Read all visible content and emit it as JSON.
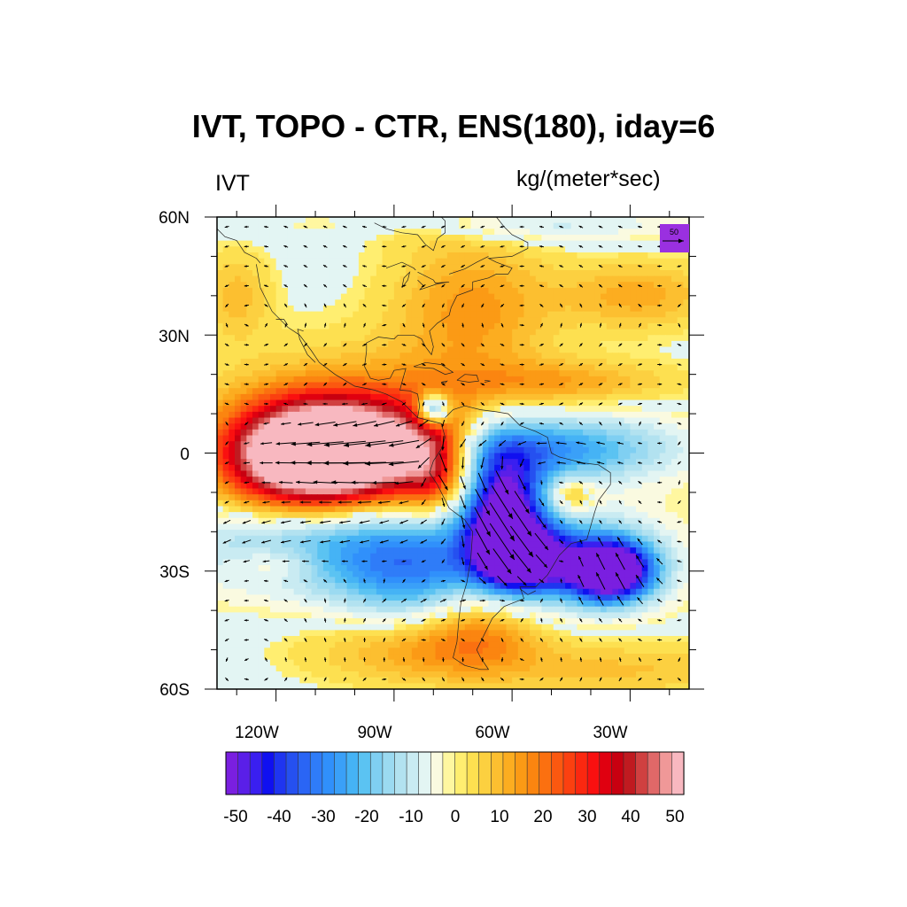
{
  "title": "IVT, TOPO - CTR, ENS(180), iday=6",
  "left_string": "IVT",
  "right_string": "kg/(meter*sec)",
  "y_axis_labels": [
    "60N",
    "30N",
    "0",
    "30S",
    "60S"
  ],
  "x_axis_labels": [
    "120W",
    "90W",
    "60W",
    "30W"
  ],
  "reference_vector_label": "50",
  "colorbar_labels": [
    "-50",
    "-40",
    "-30",
    "-20",
    "-10",
    "0",
    "10",
    "20",
    "30",
    "40",
    "50"
  ],
  "colorbar_colors": [
    "#7a1fe0",
    "#5a1fe8",
    "#3a1ff0",
    "#1010f0",
    "#1f35f0",
    "#2550f0",
    "#2a65f5",
    "#2f7cf8",
    "#3090fb",
    "#3aa0f8",
    "#45b3f5",
    "#5bc3f2",
    "#7fcff2",
    "#9bdaf1",
    "#b2e2f0",
    "#c9ebf2",
    "#e3f5f3",
    "#fafae0",
    "#fff7a0",
    "#ffee70",
    "#fde050",
    "#fcd040",
    "#fcbf30",
    "#fcad20",
    "#fb9a15",
    "#fb8510",
    "#fb7010",
    "#fb5810",
    "#fb4010",
    "#fb2810",
    "#fa1010",
    "#e00010",
    "#c80010",
    "#c01a20",
    "#d04040",
    "#e06868",
    "#f09898",
    "#f8b8c0"
  ],
  "colors": {
    "background": "#ffffff",
    "coastline": "#222222",
    "vector": "#000000",
    "ref_box": "#9a30e0"
  },
  "map": {
    "lat_range": [
      -60,
      60
    ],
    "lon_range": [
      -135,
      -15
    ],
    "data_range": [
      -50,
      50
    ]
  },
  "field_features": [
    {
      "lon": -105,
      "lat": 0,
      "value": 75,
      "sx": 16,
      "sy": 9
    },
    {
      "lon": -98,
      "lat": 5,
      "value": 15,
      "sx": 25,
      "sy": 14
    },
    {
      "lon": -80,
      "lat": -2,
      "value": 25,
      "sx": 6,
      "sy": 9
    },
    {
      "lon": -120,
      "lat": -3,
      "value": 15,
      "sx": 12,
      "sy": 10
    },
    {
      "lon": -80,
      "lat": 11,
      "value": -40,
      "sx": 3,
      "sy": 3
    },
    {
      "lon": -52,
      "lat": 1,
      "value": -28,
      "sx": 22,
      "sy": 6
    },
    {
      "lon": -62,
      "lat": -15,
      "value": -52,
      "sx": 7,
      "sy": 11
    },
    {
      "lon": -57,
      "lat": -27,
      "value": -40,
      "sx": 7,
      "sy": 5
    },
    {
      "lon": -35,
      "lat": -30,
      "value": -58,
      "sx": 7,
      "sy": 5
    },
    {
      "lon": -45,
      "lat": -28,
      "value": -25,
      "sx": 16,
      "sy": 8
    },
    {
      "lon": -100,
      "lat": -22,
      "value": -25,
      "sx": 30,
      "sy": 9
    },
    {
      "lon": -85,
      "lat": -33,
      "value": -18,
      "sx": 14,
      "sy": 8
    },
    {
      "lon": -45,
      "lat": -11,
      "value": 15,
      "sx": 4,
      "sy": 3
    },
    {
      "lon": -70,
      "lat": 37,
      "value": 14,
      "sx": 14,
      "sy": 13
    },
    {
      "lon": -48,
      "lat": 18,
      "value": 12,
      "sx": 20,
      "sy": 4
    },
    {
      "lon": -28,
      "lat": 40,
      "value": 12,
      "sx": 14,
      "sy": 6
    },
    {
      "lon": -82,
      "lat": -50,
      "value": 13,
      "sx": 20,
      "sy": 6
    },
    {
      "lon": -68,
      "lat": -42,
      "value": 14,
      "sx": 10,
      "sy": 8
    },
    {
      "lon": -30,
      "lat": -55,
      "value": 8,
      "sx": 25,
      "sy": 5
    },
    {
      "lon": -120,
      "lat": -28,
      "value": 9,
      "sx": 8,
      "sy": 3
    },
    {
      "lon": -130,
      "lat": 40,
      "value": 9,
      "sx": 6,
      "sy": 8
    },
    {
      "lon": -85,
      "lat": 58,
      "value": 6,
      "sx": 12,
      "sy": 4
    },
    {
      "lon": -60,
      "lat": 58,
      "value": -10,
      "sx": 30,
      "sy": 3
    }
  ]
}
